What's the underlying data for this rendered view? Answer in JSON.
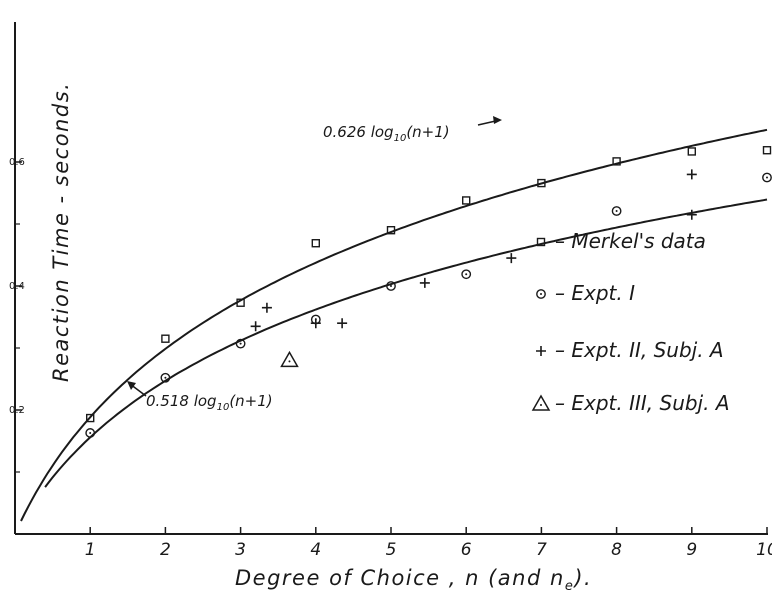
{
  "chart_data": {
    "type": "scatter",
    "xlabel": "Degree of Choice , n   (and n",
    "xlabel_sub": "e",
    "xlabel_end": ").",
    "ylabel": "Reaction Time - seconds.",
    "xlim": [
      0,
      10
    ],
    "ylim": [
      0,
      0.65
    ],
    "x_ticks": [
      1,
      2,
      3,
      4,
      5,
      6,
      7,
      8,
      9,
      10
    ],
    "y_ticks": [
      {
        "value": 0.2,
        "label": "0.2"
      },
      {
        "value": 0.4,
        "label": "0.4"
      },
      {
        "value": 0.6,
        "label": "0.6"
      }
    ],
    "y_minor_ticks": [
      0.1,
      0.3,
      0.5
    ],
    "grid": false,
    "legend_position": "right",
    "series": [
      {
        "name": "Merkel's data",
        "marker": "square",
        "x": [
          1,
          2,
          3,
          4,
          5,
          6,
          7,
          8,
          9,
          10
        ],
        "y": [
          0.187,
          0.315,
          0.373,
          0.469,
          0.49,
          0.538,
          0.566,
          0.601,
          0.617,
          0.619
        ]
      },
      {
        "name": "Expt. I",
        "marker": "circle",
        "x": [
          1,
          2,
          3,
          4,
          5,
          6,
          8,
          10
        ],
        "y": [
          0.163,
          0.252,
          0.307,
          0.346,
          0.4,
          0.419,
          0.521,
          0.575
        ]
      },
      {
        "name": "Expt. II, Subj. A",
        "marker": "plus",
        "x": [
          3.2,
          3.35,
          4,
          4.35,
          5.45,
          6.6,
          9,
          9
        ],
        "y": [
          0.335,
          0.365,
          0.34,
          0.34,
          0.405,
          0.445,
          0.58,
          0.515
        ]
      },
      {
        "name": "Expt. III, Subj. A",
        "marker": "triangle",
        "x": [
          3.65
        ],
        "y": [
          0.28
        ]
      }
    ],
    "curves": [
      {
        "label": "0.626 log",
        "label_sub": "10",
        "label_end": "(n+1)",
        "coef": 0.626
      },
      {
        "label": "0.518 log",
        "label_sub": "10",
        "label_end": "(n+1)",
        "coef": 0.518
      }
    ]
  }
}
